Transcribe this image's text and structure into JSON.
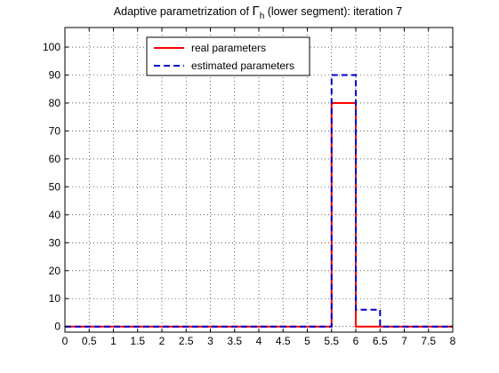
{
  "figure": {
    "title_prefix": "Adaptive parametrization of ",
    "title_symbol": "Γ",
    "title_subscript": "h",
    "title_suffix": " (lower segment): iteration 7"
  },
  "chart_data": {
    "type": "line",
    "title": "Adaptive parametrization of Γh (lower segment): iteration 7",
    "xlabel": "",
    "ylabel": "",
    "xlim": [
      0,
      8
    ],
    "ylim": [
      -2,
      107
    ],
    "grid": true,
    "grid_style": "dotted",
    "legend_position": "top-left",
    "xticks": [
      0,
      0.5,
      1,
      1.5,
      2,
      2.5,
      3,
      3.5,
      4,
      4.5,
      5,
      5.5,
      6,
      6.5,
      7,
      7.5,
      8
    ],
    "yticks": [
      0,
      10,
      20,
      30,
      40,
      50,
      60,
      70,
      80,
      90,
      100
    ],
    "series": [
      {
        "name": "real parameters",
        "color": "#ff0000",
        "line_style": "solid",
        "x": [
          0,
          5.5,
          5.5,
          6.0,
          6.0,
          8.0
        ],
        "y": [
          0,
          0,
          80,
          80,
          0,
          0
        ]
      },
      {
        "name": "estimated parameters",
        "color": "#0000cc",
        "line_style": "dashed",
        "x": [
          0,
          5.5,
          5.5,
          6.0,
          6.0,
          6.5,
          6.5,
          8.0
        ],
        "y": [
          0,
          0,
          90,
          90,
          6,
          6,
          0,
          0
        ]
      }
    ]
  }
}
